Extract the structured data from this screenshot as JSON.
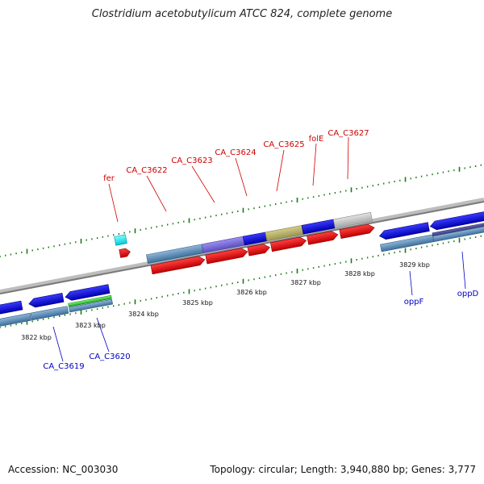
{
  "title": "Clostridium acetobutylicum ATCC 824, complete genome",
  "footer": {
    "accession": "Accession: NC_003030",
    "summary": "Topology: circular; Length: 3,940,880 bp; Genes: 3,777"
  },
  "colors": {
    "top_label": "#d00000",
    "bottom_label": "#0000c0",
    "tick": "#1a7a1a",
    "backbone": "#8a8a8a"
  },
  "scale_labels": [
    "3822 kbp",
    "3823 kbp",
    "3824 kbp",
    "3825 kbp",
    "3826 kbp",
    "3827 kbp",
    "3828 kbp",
    "3829 kbp"
  ],
  "top_genes": [
    "fer",
    "CA_C3622",
    "CA_C3623",
    "CA_C3624",
    "CA_C3625",
    "folE",
    "CA_C3627"
  ],
  "bottom_genes": [
    "CA_C3619",
    "CA_C3620",
    "oppF",
    "oppD"
  ]
}
